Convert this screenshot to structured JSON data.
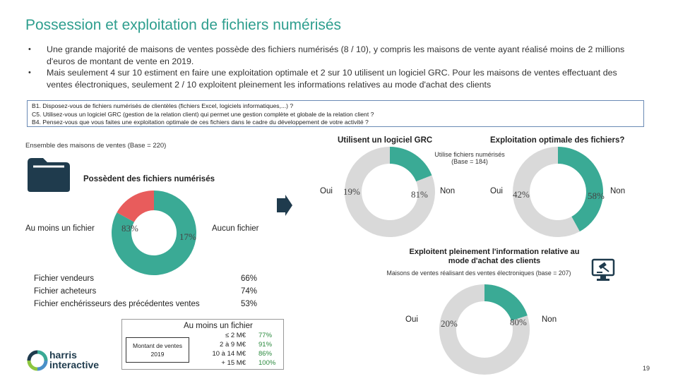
{
  "title": "Possession et exploitation de fichiers numérisés",
  "bullets": [
    "Une grande majorité de maisons de ventes possède des fichiers numérisés (8 / 10), y compris les maisons de vente ayant réalisé moins de 2 millions d'euros de montant de vente en 2019.",
    "Mais seulement 4 sur 10 estiment en faire une exploitation optimale et 2 sur 10 utilisent un logiciel GRC. Pour les maisons de ventes effectuant des ventes électroniques, seulement 2 / 10 exploitent pleinement les informations relatives au mode d'achat des clients"
  ],
  "questions": [
    "B1. Disposez-vous de fichiers numérisés de clientèles (fichiers Excel, logiciels informatiques,...) ?",
    "C5. Utilisez-vous un logiciel GRC (gestion de la relation client) qui permet une gestion complète et globale de la relation client ?",
    "B4. Pensez-vous que vous faites une exploitation optimale de ces fichiers dans le cadre du développement de votre activité ?"
  ],
  "base_all": "Ensemble des maisons de ventes (Base = 220)",
  "base_files": "Utilise fichiers numérisés (Base = 184)",
  "base_electronic": "Maisons de ventes réalisant des ventes électroniques (base = 207)",
  "labels": {
    "possede": "Possèdent des fichiers numérisés",
    "au_moins": "Au moins un fichier",
    "aucun": "Aucun fichier",
    "grc": "Utilisent un logiciel GRC",
    "optimale": "Exploitation optimale des fichiers?",
    "exploitent": "Exploitent pleinement l'information relative au mode d'achat des clients",
    "oui": "Oui",
    "non": "Non",
    "legend_title": "Au moins un fichier",
    "montant": "Montant de ventes 2019"
  },
  "breakdown": [
    {
      "label": "Fichier vendeurs",
      "value": "66%"
    },
    {
      "label": "Fichier acheteurs",
      "value": "74%"
    },
    {
      "label": "Fichier enchérisseurs des précédentes ventes",
      "value": "53%"
    }
  ],
  "tranches": [
    {
      "label": "≤ 2 M€",
      "value": "77%"
    },
    {
      "label": "2 à 9 M€",
      "value": "91%"
    },
    {
      "label": "10 à 14 M€",
      "value": "86%"
    },
    {
      "label": "+ 15 M€",
      "value": "100%"
    }
  ],
  "logo_text": [
    "harris",
    "interactive"
  ],
  "page_number": "19",
  "colors": {
    "teal": "#3aaa95",
    "grey": "#d9d9d9",
    "red": "#e85c5c",
    "title": "#2e9e8e",
    "navy": "#1f3b4d"
  },
  "chart_data": [
    {
      "type": "pie",
      "name": "possession",
      "title": "Possèdent des fichiers numérisés",
      "categories": [
        "Au moins un fichier",
        "Aucun fichier"
      ],
      "values": [
        83,
        17
      ],
      "display": [
        "83%",
        "17%"
      ],
      "colors": [
        "#3aaa95",
        "#e85c5c"
      ]
    },
    {
      "type": "pie",
      "name": "grc",
      "title": "Utilisent un logiciel GRC",
      "categories": [
        "Oui",
        "Non"
      ],
      "values": [
        19,
        81
      ],
      "display": [
        "19%",
        "81%"
      ],
      "colors": [
        "#3aaa95",
        "#d9d9d9"
      ]
    },
    {
      "type": "pie",
      "name": "optimale",
      "title": "Exploitation optimale des fichiers?",
      "categories": [
        "Oui",
        "Non"
      ],
      "values": [
        42,
        58
      ],
      "display": [
        "42%",
        "58%"
      ],
      "colors": [
        "#3aaa95",
        "#d9d9d9"
      ]
    },
    {
      "type": "pie",
      "name": "exploitent",
      "title": "Exploitent pleinement l'information relative au mode d'achat des clients",
      "categories": [
        "Oui",
        "Non"
      ],
      "values": [
        20,
        80
      ],
      "display": [
        "20%",
        "80%"
      ],
      "colors": [
        "#3aaa95",
        "#d9d9d9"
      ]
    }
  ]
}
